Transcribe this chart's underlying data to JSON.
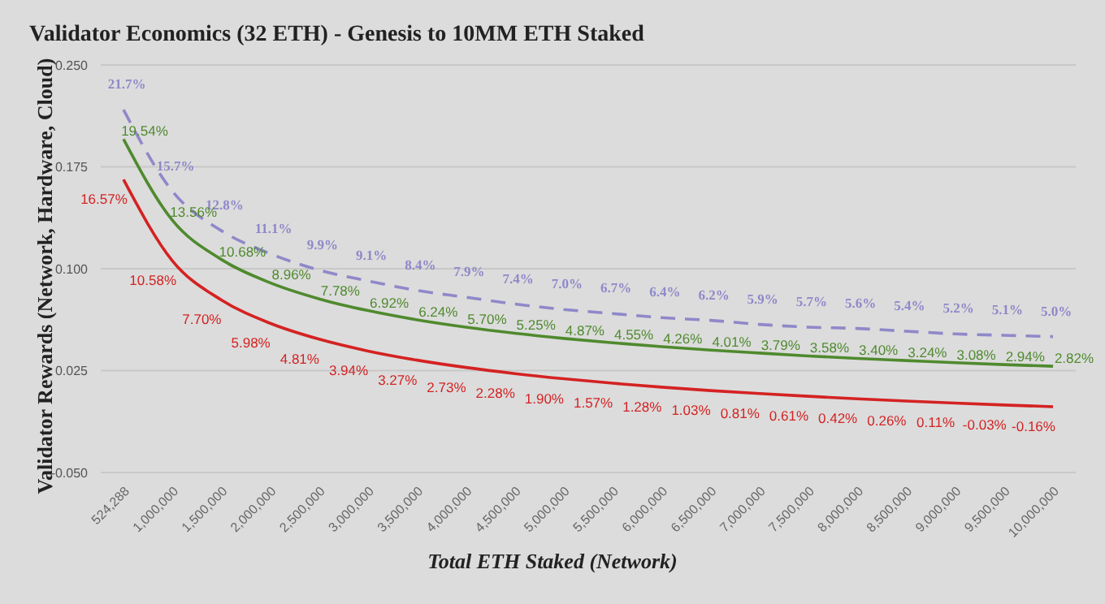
{
  "chart_data": {
    "type": "line",
    "title": "Validator Economics (32 ETH) - Genesis to 10MM ETH Staked",
    "xlabel": "Total ETH Staked (Network)",
    "ylabel": "Validator Rewards (Network, Hardware, Cloud)",
    "categories": [
      "524,288",
      "1,000,000",
      "1,500,000",
      "2,000,000",
      "2,500,000",
      "3,000,000",
      "3,500,000",
      "4,000,000",
      "4,500,000",
      "5,000,000",
      "5,500,000",
      "6,000,000",
      "6,500,000",
      "7,000,000",
      "7,500,000",
      "8,000,000",
      "8,500,000",
      "9,000,000",
      "9,500,000",
      "10,000,000"
    ],
    "series": [
      {
        "color": "#8f88c9",
        "line_style": "dashed",
        "values": [
          0.217,
          0.157,
          0.128,
          0.111,
          0.099,
          0.091,
          0.084,
          0.079,
          0.074,
          0.07,
          0.067,
          0.064,
          0.062,
          0.059,
          0.057,
          0.056,
          0.054,
          0.052,
          0.051,
          0.05
        ],
        "value_labels": [
          "21.7%",
          "15.7%",
          "12.8%",
          "11.1%",
          "9.9%",
          "9.1%",
          "8.4%",
          "7.9%",
          "7.4%",
          "7.0%",
          "6.7%",
          "6.4%",
          "6.2%",
          "5.9%",
          "5.7%",
          "5.6%",
          "5.4%",
          "5.2%",
          "5.1%",
          "5.0%"
        ]
      },
      {
        "color": "#4f8a2e",
        "line_style": "solid",
        "values": [
          0.1954,
          0.1356,
          0.1068,
          0.0896,
          0.0778,
          0.0692,
          0.0624,
          0.057,
          0.0525,
          0.0487,
          0.0455,
          0.0426,
          0.0401,
          0.0379,
          0.0358,
          0.034,
          0.0324,
          0.0308,
          0.0294,
          0.0282
        ],
        "value_labels": [
          "19.54%",
          "13.56%",
          "10.68%",
          "8.96%",
          "7.78%",
          "6.92%",
          "6.24%",
          "5.70%",
          "5.25%",
          "4.87%",
          "4.55%",
          "4.26%",
          "4.01%",
          "3.79%",
          "3.58%",
          "3.40%",
          "3.24%",
          "3.08%",
          "2.94%",
          "2.82%"
        ]
      },
      {
        "color": "#d42222",
        "line_style": "solid",
        "values": [
          0.1657,
          0.1058,
          0.077,
          0.0598,
          0.0481,
          0.0394,
          0.0327,
          0.0273,
          0.0228,
          0.019,
          0.0157,
          0.0128,
          0.0103,
          0.0081,
          0.0061,
          0.0042,
          0.0026,
          0.0011,
          -0.0003,
          -0.0016
        ],
        "value_labels": [
          "16.57%",
          "10.58%",
          "7.70%",
          "5.98%",
          "4.81%",
          "3.94%",
          "3.27%",
          "2.73%",
          "2.28%",
          "1.90%",
          "1.57%",
          "1.28%",
          "1.03%",
          "0.81%",
          "0.61%",
          "0.42%",
          "0.26%",
          "0.11%",
          "-0.03%",
          "-0.16%"
        ]
      }
    ],
    "ylim": [
      -0.05,
      0.25
    ],
    "yticks": [
      {
        "value": -0.05,
        "label": "-0.050"
      },
      {
        "value": 0.025,
        "label": "0.025"
      },
      {
        "value": 0.1,
        "label": "0.100"
      },
      {
        "value": 0.175,
        "label": "0.175"
      },
      {
        "value": 0.25,
        "label": "0.250"
      }
    ],
    "grid": "y",
    "legend": false,
    "marker": "none"
  }
}
